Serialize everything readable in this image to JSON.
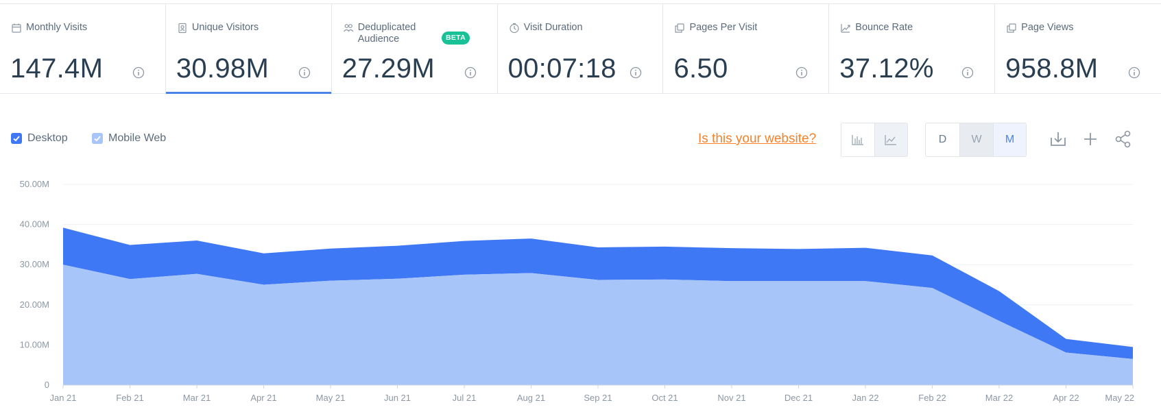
{
  "metrics": [
    {
      "label": "Monthly Visits",
      "value": "147.4M",
      "icon": "calendar-icon",
      "active": false
    },
    {
      "label": "Unique Visitors",
      "value": "30.98M",
      "icon": "person-badge-icon",
      "active": true
    },
    {
      "label": "Deduplicated Audience",
      "value": "27.29M",
      "icon": "people-icon",
      "active": false,
      "badge": "BETA"
    },
    {
      "label": "Visit Duration",
      "value": "00:07:18",
      "icon": "clock-icon",
      "active": false
    },
    {
      "label": "Pages Per Visit",
      "value": "6.50",
      "icon": "pages-icon",
      "active": false
    },
    {
      "label": "Bounce Rate",
      "value": "37.12%",
      "icon": "trend-up-icon",
      "active": false
    },
    {
      "label": "Page Views",
      "value": "958.8M",
      "icon": "pages-icon",
      "active": false
    }
  ],
  "legend": {
    "desktop": "Desktop",
    "mobile": "Mobile Web"
  },
  "website_link": "Is this your website?",
  "granularity": {
    "d": "D",
    "w": "W",
    "m": "M",
    "selected": "M"
  },
  "colors": {
    "desktop": "#3f78f5",
    "mobile": "#a8c5fa",
    "accent": "#4c83e8",
    "link": "#f5822a",
    "beta": "#19c296"
  },
  "chart_data": {
    "type": "area",
    "stacked": true,
    "x": [
      "Jan 21",
      "Feb 21",
      "Mar 21",
      "Apr 21",
      "May 21",
      "Jun 21",
      "Jul 21",
      "Aug 21",
      "Sep 21",
      "Oct 21",
      "Nov 21",
      "Dec 21",
      "Jan 22",
      "Feb 22",
      "Mar 22",
      "Apr 22",
      "May 22"
    ],
    "series": [
      {
        "name": "Mobile Web",
        "values": [
          30.0,
          26.4,
          27.7,
          25.0,
          26.0,
          26.5,
          27.5,
          27.9,
          26.2,
          26.3,
          25.9,
          25.9,
          25.9,
          24.2,
          16.0,
          8.1,
          6.5
        ]
      },
      {
        "name": "Desktop",
        "values": [
          9.2,
          8.5,
          8.3,
          7.8,
          8.0,
          8.2,
          8.4,
          8.6,
          8.1,
          8.2,
          8.2,
          8.0,
          8.3,
          8.1,
          7.4,
          3.4,
          3.0
        ]
      }
    ],
    "yticks": [
      "0",
      "10.00M",
      "20.00M",
      "30.00M",
      "40.00M",
      "50.00M"
    ],
    "ylim": [
      0,
      50
    ],
    "grid": true
  }
}
